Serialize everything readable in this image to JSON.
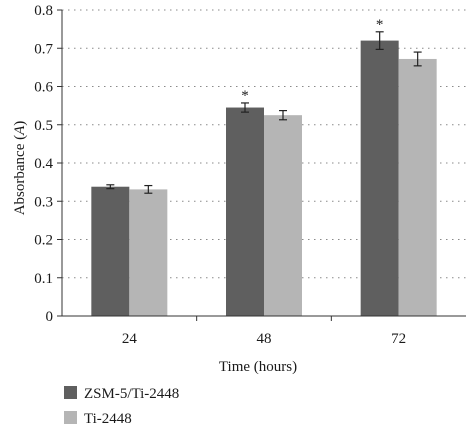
{
  "chart_data": {
    "type": "bar",
    "title": "",
    "xlabel": "Time (hours)",
    "ylabel_prefix": "Absorbance (",
    "ylabel_italic": "A",
    "ylabel_suffix": ")",
    "categories": [
      "24",
      "48",
      "72"
    ],
    "ylim": [
      0,
      0.8
    ],
    "yticks": [
      0,
      0.1,
      0.2,
      0.3,
      0.4,
      0.5,
      0.6,
      0.7,
      0.8
    ],
    "ytick_labels": [
      "0",
      "0.1",
      "0.2",
      "0.3",
      "0.4",
      "0.5",
      "0.6",
      "0.7",
      "0.8"
    ],
    "grid": "horizontal-dotted",
    "legend_position": "bottom-left",
    "series": [
      {
        "name": "ZSM-5/Ti-2448",
        "color": "#5f5f5f",
        "values": [
          0.338,
          0.545,
          0.72
        ],
        "errors": [
          0.005,
          0.012,
          0.023
        ],
        "significance": [
          "",
          "*",
          "*"
        ]
      },
      {
        "name": "Ti-2448",
        "color": "#b5b5b5",
        "values": [
          0.331,
          0.525,
          0.672
        ],
        "errors": [
          0.01,
          0.012,
          0.018
        ],
        "significance": [
          "",
          "",
          ""
        ]
      }
    ]
  }
}
